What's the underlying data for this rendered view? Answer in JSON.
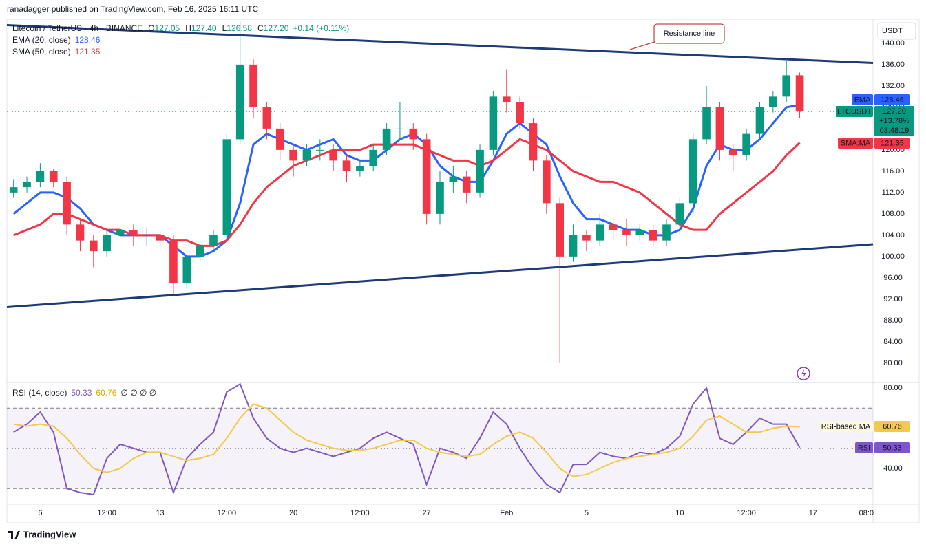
{
  "header": {
    "published": "ranadagger published on TradingView.com, Feb 16, 2025 16:11 UTC"
  },
  "footer": {
    "brand": "TradingView"
  },
  "chart_data": [
    {
      "type": "candlestick",
      "symbol": "Litecoin / TetherUS · 4h · BINANCE",
      "ohlc_legend": [
        {
          "key": "O",
          "text": "127.05"
        },
        {
          "key": "H",
          "text": "127.40"
        },
        {
          "key": "L",
          "text": "126.58"
        },
        {
          "key": "C",
          "text": "127.20"
        }
      ],
      "change": "+0.14 (+0.11%)",
      "currency": "USDT",
      "annotation": "Resistance line",
      "symbol_tag": "LTCUSDT",
      "last_price": "127.20",
      "change_pct": "+13.78%",
      "countdown": "03:48:19",
      "ema_tag": "EMA",
      "sma_tag": "SMA:MA",
      "up_color": "#089981",
      "down_color": "#f23645",
      "categories": [
        null,
        null,
        "6",
        null,
        null,
        null,
        null,
        "12:00",
        null,
        null,
        null,
        "13",
        null,
        null,
        null,
        null,
        "12:00",
        null,
        null,
        null,
        null,
        "20",
        null,
        null,
        null,
        null,
        "12:00",
        null,
        null,
        null,
        null,
        "27",
        null,
        null,
        null,
        null,
        null,
        "Feb",
        null,
        null,
        null,
        null,
        null,
        "5",
        null,
        null,
        null,
        null,
        null,
        null,
        "10",
        null,
        null,
        null,
        null,
        "12:00",
        null,
        null,
        null,
        null,
        "17",
        null,
        null,
        null,
        "08:0"
      ],
      "open": [
        112,
        113,
        114,
        116,
        114,
        106,
        103,
        101,
        104,
        105,
        104,
        104,
        103,
        95,
        100,
        102,
        104,
        122,
        136,
        128,
        124,
        120,
        118,
        120,
        120,
        118,
        116,
        117,
        120,
        124,
        124,
        122,
        108,
        114,
        115,
        112,
        120,
        130,
        129,
        125,
        118,
        110,
        100,
        104,
        103,
        106,
        105,
        104,
        105,
        103,
        106,
        110,
        122,
        128,
        120,
        119,
        123,
        128,
        130,
        134,
        null,
        null,
        null,
        null,
        null
      ],
      "high": [
        114.5,
        115,
        117.5,
        116.5,
        115,
        107,
        104,
        105,
        106,
        106,
        105.5,
        105,
        104,
        100.5,
        102.5,
        105,
        123,
        144,
        137,
        129,
        125,
        121,
        121,
        122,
        121,
        119,
        118,
        121,
        125,
        129,
        125,
        123,
        116,
        117,
        116,
        121,
        131,
        135,
        130,
        126,
        119,
        111,
        106,
        105,
        108,
        107,
        107,
        106,
        106,
        107,
        111,
        123,
        132,
        129,
        121,
        124,
        129,
        131,
        137,
        134.5,
        null,
        null,
        null,
        null,
        null
      ],
      "low": [
        111,
        112,
        113,
        113,
        104,
        101,
        98,
        100,
        103,
        102,
        102,
        101,
        93,
        94,
        99,
        101,
        103,
        121,
        126,
        122,
        118,
        115,
        117,
        118,
        116,
        114,
        115,
        116,
        119,
        122,
        120,
        106,
        106,
        112,
        110,
        111,
        119,
        127,
        124,
        116,
        108,
        80,
        99,
        101,
        102,
        103,
        102,
        103,
        102,
        102,
        104,
        108,
        121,
        118,
        116,
        118,
        122,
        127,
        129,
        126,
        null,
        null,
        null,
        null,
        null
      ],
      "close": [
        113,
        114,
        116,
        114,
        106,
        103,
        101,
        104,
        105,
        104,
        104,
        103,
        95,
        100,
        102,
        104,
        122,
        136,
        128,
        124,
        120,
        118,
        120,
        120,
        118,
        116,
        117,
        120,
        124,
        124,
        122,
        108,
        114,
        115,
        112,
        120,
        130,
        129,
        125,
        118,
        110,
        100,
        104,
        103,
        106,
        105,
        104,
        105,
        103,
        106,
        110,
        122,
        128,
        120,
        119,
        123,
        128,
        130,
        134,
        127.2,
        null,
        null,
        null,
        null,
        null
      ],
      "series": [
        {
          "name": "EMA (20, close)",
          "color": "#2962ff",
          "values": [
            108,
            110,
            112,
            112,
            111,
            109,
            106,
            105,
            104,
            104,
            104,
            104,
            102,
            100,
            100,
            101,
            103,
            110,
            121,
            123,
            122,
            121,
            120,
            121,
            122,
            119,
            118,
            118,
            120,
            122,
            123,
            121,
            117,
            115,
            114,
            114,
            118,
            123,
            125,
            123,
            121,
            115,
            110,
            107,
            107,
            106,
            105,
            105,
            104,
            104,
            105,
            109,
            117,
            121,
            120,
            120,
            122,
            125,
            128,
            128.46,
            null,
            null,
            null,
            null,
            null
          ]
        },
        {
          "name": "SMA (50, close)",
          "color": "#f23645",
          "values": [
            104,
            105,
            106,
            108,
            108,
            107,
            106,
            105,
            105,
            104,
            104,
            104,
            103,
            103,
            102,
            102,
            103,
            106,
            110,
            113,
            115,
            117,
            118,
            119,
            120,
            120,
            120,
            121,
            121,
            121,
            121,
            120,
            119,
            118,
            118,
            117,
            118,
            120,
            122,
            121,
            120,
            118,
            116,
            115,
            114,
            114,
            113,
            112,
            110,
            108,
            106,
            105,
            105,
            108,
            110,
            112,
            114,
            116,
            119,
            121.35,
            null,
            null,
            null,
            null,
            null
          ]
        }
      ],
      "trendlines": [
        {
          "name": "resistance",
          "y_start": 143.4,
          "y_end": 136.3
        },
        {
          "name": "support",
          "y_start": 90.5,
          "y_end": 102.3
        }
      ],
      "trendline_color": "#1e3a78",
      "ylim": [
        76.5,
        144.5
      ],
      "yticks": [
        {
          "value": 80,
          "label": "80.00"
        },
        {
          "value": 84,
          "label": "84.00"
        },
        {
          "value": 88,
          "label": "88.00"
        },
        {
          "value": 92,
          "label": "92.00"
        },
        {
          "value": 96,
          "label": "96.00"
        },
        {
          "value": 100,
          "label": "100.00"
        },
        {
          "value": 104,
          "label": "104.00"
        },
        {
          "value": 108,
          "label": "108.00"
        },
        {
          "value": 112,
          "label": "112.00"
        },
        {
          "value": 116,
          "label": "116.00"
        },
        {
          "value": 120,
          "label": "120.00"
        },
        {
          "value": 124,
          "label": "124.00"
        },
        {
          "value": 128,
          "label": "128.00"
        },
        {
          "value": 132,
          "label": "132.00"
        },
        {
          "value": 136,
          "label": "136.00"
        },
        {
          "value": 140,
          "label": "140.00"
        }
      ],
      "grid": false
    },
    {
      "type": "line",
      "title": "RSI (14, close)",
      "empty_values": "∅ ∅ ∅ ∅",
      "series": [
        {
          "name": "RSI",
          "color": "#7e57c2",
          "values": [
            58,
            62,
            68,
            58,
            30,
            28,
            27,
            45,
            52,
            50,
            48,
            48,
            28,
            45,
            52,
            58,
            78,
            82,
            65,
            55,
            50,
            48,
            50,
            48,
            46,
            48,
            50,
            55,
            58,
            55,
            52,
            32,
            50,
            48,
            45,
            55,
            68,
            62,
            50,
            40,
            32,
            28,
            42,
            42,
            48,
            46,
            45,
            48,
            47,
            50,
            56,
            72,
            80,
            55,
            52,
            58,
            65,
            62,
            62,
            50.33,
            null,
            null,
            null,
            null,
            null
          ]
        },
        {
          "name": "RSI-based MA",
          "color": "#f2c94c",
          "values": [
            62,
            61,
            62,
            61,
            55,
            47,
            40,
            38,
            40,
            45,
            48,
            48,
            46,
            44,
            45,
            47,
            55,
            65,
            72,
            70,
            64,
            58,
            54,
            52,
            50,
            49,
            49,
            50,
            52,
            54,
            54,
            50,
            48,
            47,
            46,
            47,
            52,
            56,
            58,
            55,
            48,
            40,
            36,
            37,
            40,
            43,
            45,
            46,
            47,
            48,
            50,
            56,
            64,
            66,
            62,
            58,
            58,
            60,
            61,
            60.76,
            null,
            null,
            null,
            null,
            null
          ]
        }
      ],
      "band": [
        30,
        70
      ],
      "midline": 50,
      "band_color": "#7e57c2",
      "ylim": [
        22.2,
        82.4
      ],
      "yticks": [
        {
          "value": 40,
          "label": "40.00"
        },
        {
          "value": 80,
          "label": "80.00"
        }
      ]
    }
  ]
}
